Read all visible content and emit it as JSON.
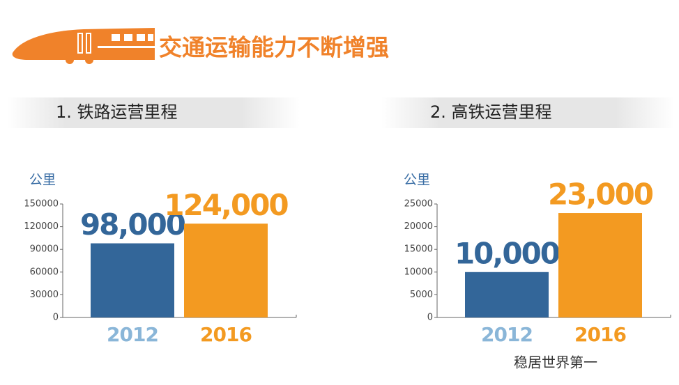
{
  "header": {
    "title": "交通运输能力不断增强"
  },
  "chart_data": [
    {
      "type": "bar",
      "subtitle": "1. 铁路运营里程",
      "y_label": "公里",
      "categories": [
        "2012",
        "2016"
      ],
      "values": [
        98000,
        124000
      ],
      "value_labels": [
        "98,000",
        "124,000"
      ],
      "colors": [
        "#336699",
        "#f39a21"
      ],
      "category_colors": [
        "#8ab6d8",
        "#f39a21"
      ],
      "ylim": [
        0,
        150000
      ],
      "yticks": [
        0,
        30000,
        60000,
        90000,
        120000,
        150000
      ]
    },
    {
      "type": "bar",
      "subtitle": "2. 高铁运营里程",
      "y_label": "公里",
      "categories": [
        "2012",
        "2016"
      ],
      "values": [
        10000,
        23000
      ],
      "value_labels": [
        "10,000",
        "23,000"
      ],
      "colors": [
        "#336699",
        "#f39a21"
      ],
      "category_colors": [
        "#8ab6d8",
        "#f39a21"
      ],
      "ylim": [
        0,
        25000
      ],
      "yticks": [
        0,
        5000,
        10000,
        15000,
        20000,
        25000
      ],
      "note": "稳居世界第一"
    }
  ]
}
